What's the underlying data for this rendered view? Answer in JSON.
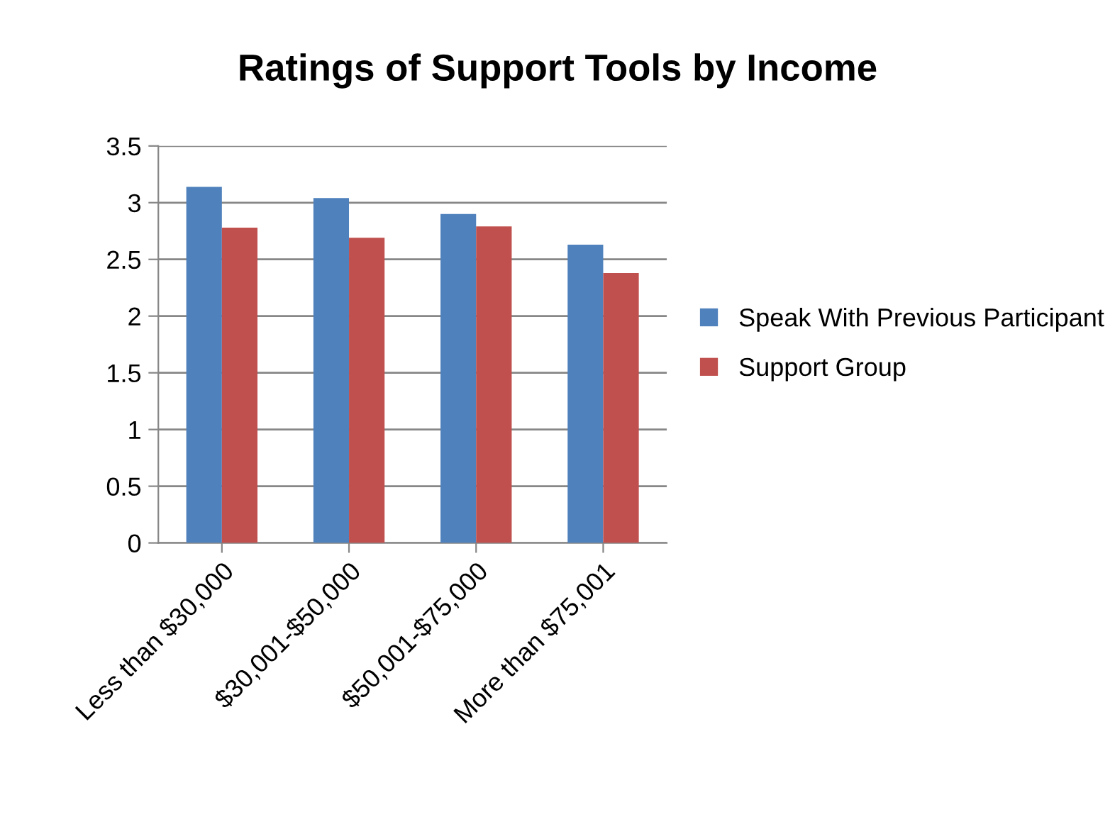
{
  "chart_data": {
    "type": "bar",
    "title": "Ratings of Support Tools by Income",
    "categories": [
      "Less than $30,000",
      "$30,001-$50,000",
      "$50,001-$75,000",
      "More than $75,001"
    ],
    "series": [
      {
        "name": "Speak With Previous Participant",
        "color": "#4f81bd",
        "values": [
          3.14,
          3.04,
          2.9,
          2.63
        ]
      },
      {
        "name": "Support Group",
        "color": "#c0504d",
        "values": [
          2.78,
          2.69,
          2.79,
          2.38
        ]
      }
    ],
    "ylim": [
      0,
      3.5
    ],
    "yticks": [
      0,
      0.5,
      1,
      1.5,
      2,
      2.5,
      3,
      3.5
    ],
    "grid": "y",
    "legend": "right"
  }
}
